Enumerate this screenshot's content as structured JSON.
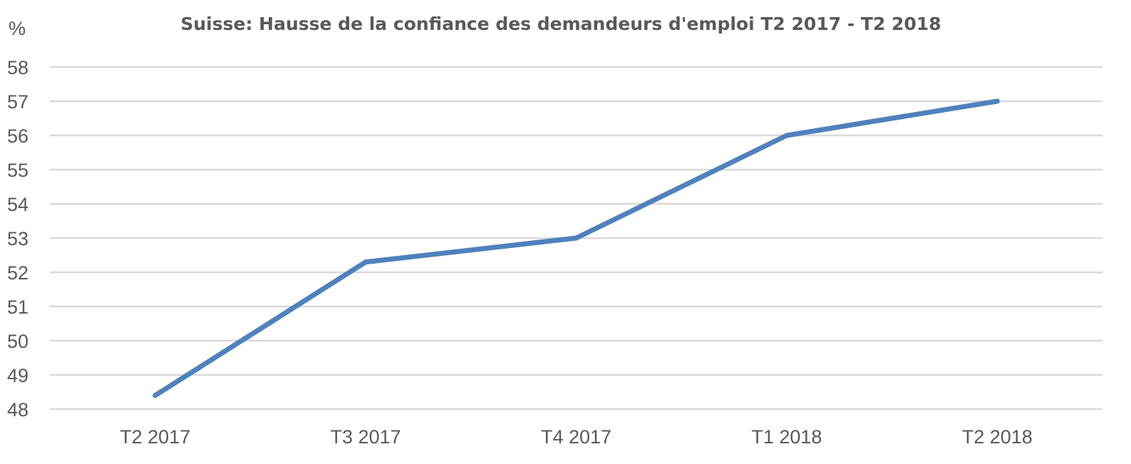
{
  "chart_data": {
    "type": "line",
    "title": "Suisse: Hausse de la confiance des demandeurs d'emploi T2 2017 - T2 2018",
    "ylabel": "%",
    "xlabel": "",
    "categories": [
      "T2 2017",
      "T3 2017",
      "T4 2017",
      "T1 2018",
      "T2 2018"
    ],
    "series": [
      {
        "values": [
          48.4,
          52.3,
          53.0,
          56.0,
          57.0
        ],
        "color": "#4f81bd"
      }
    ],
    "ylim": [
      48,
      58
    ],
    "yticks": [
      "48",
      "49",
      "50",
      "51",
      "52",
      "53",
      "54",
      "55",
      "56",
      "57",
      "58"
    ],
    "grid": true,
    "legend": "none"
  },
  "colors": {
    "grid": "#d9d9d9",
    "text": "#595959",
    "series": "#4f81bd"
  }
}
